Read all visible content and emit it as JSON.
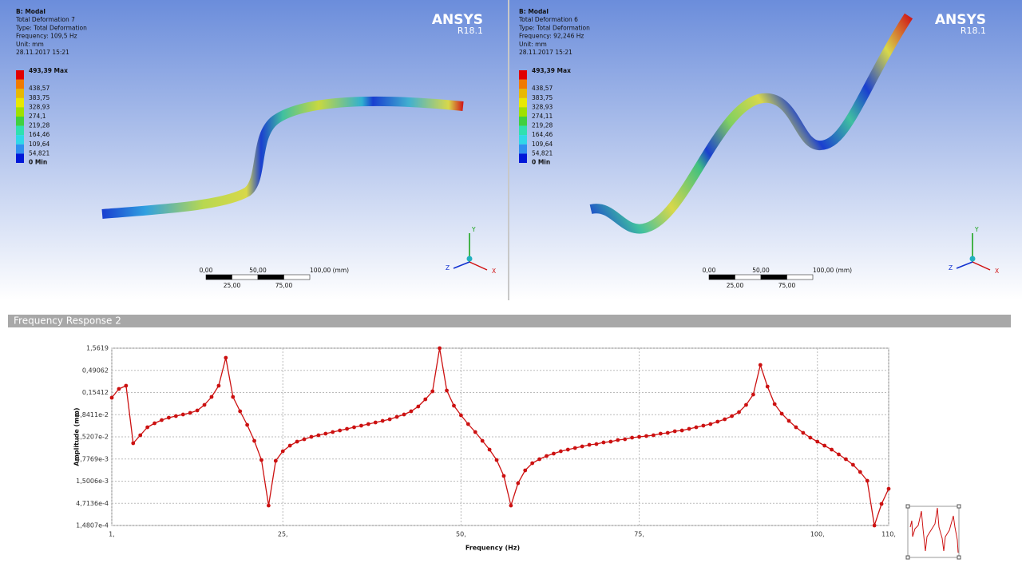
{
  "viewports": [
    {
      "info": [
        "B: Modal",
        "Total Deformation 7",
        "Type: Total Deformation",
        "Frequency: 109,5 Hz",
        "Unit: mm",
        "28.11.2017 15:21"
      ],
      "legend": [
        "493,39 Max",
        "438,57",
        "383,75",
        "328,93",
        "274,1",
        "219,28",
        "164,46",
        "109,64",
        "54,821",
        "0 Min"
      ],
      "logo": "ANSYS",
      "version": "R18.1",
      "scale_top": [
        "0,00",
        "50,00",
        "100,00 (mm)"
      ],
      "scale_bottom": [
        "25,00",
        "75,00"
      ],
      "axes": [
        "Y",
        "Z",
        "X"
      ]
    },
    {
      "info": [
        "B: Modal",
        "Total Deformation 6",
        "Type: Total Deformation",
        "Frequency: 92,246 Hz",
        "Unit: mm",
        "28.11.2017 15:21"
      ],
      "legend": [
        "493,39 Max",
        "438,57",
        "383,75",
        "328,93",
        "274,11",
        "219,28",
        "164,46",
        "109,64",
        "54,821",
        "0 Min"
      ],
      "logo": "ANSYS",
      "version": "R18.1",
      "scale_top": [
        "0,00",
        "50,00",
        "100,00 (mm)"
      ],
      "scale_bottom": [
        "25,00",
        "75,00"
      ],
      "axes": [
        "Y",
        "Z",
        "X"
      ]
    }
  ],
  "legend_colors": [
    "#e00000",
    "#f07a00",
    "#e8b800",
    "#e8e800",
    "#a0e000",
    "#40d040",
    "#30e0b0",
    "#30d8e8",
    "#3090f0",
    "#0018d8"
  ],
  "chart_data": {
    "type": "line",
    "title": "Frequency Response 2",
    "xlabel": "Frequency (Hz)",
    "ylabel": "Amplitude (mm)",
    "x": [
      1,
      2,
      3,
      4,
      5,
      6,
      7,
      8,
      9,
      10,
      11,
      12,
      13,
      14,
      15,
      16,
      17,
      18,
      19,
      20,
      21,
      22,
      23,
      24,
      25,
      26,
      27,
      28,
      29,
      30,
      31,
      32,
      33,
      34,
      35,
      36,
      37,
      38,
      39,
      40,
      41,
      42,
      43,
      44,
      45,
      46,
      47,
      48,
      49,
      50,
      51,
      52,
      53,
      54,
      55,
      56,
      57,
      58,
      59,
      60,
      61,
      62,
      63,
      64,
      65,
      66,
      67,
      68,
      69,
      70,
      71,
      72,
      73,
      74,
      75,
      76,
      77,
      78,
      79,
      80,
      81,
      82,
      83,
      84,
      85,
      86,
      87,
      88,
      89,
      90,
      91,
      92,
      93,
      94,
      95,
      96,
      97,
      98,
      99,
      100,
      101,
      102,
      103,
      104,
      105,
      106,
      107,
      108,
      109,
      110
    ],
    "series": [
      {
        "color": "#cc1111",
        "values": [
          0.1175,
          0.186,
          0.2197,
          0.01089,
          0.01653,
          0.02509,
          0.0309,
          0.0365,
          0.0414,
          0.045,
          0.0489,
          0.0532,
          0.0603,
          0.0807,
          0.1225,
          0.2197,
          0.947,
          0.1225,
          0.0578,
          0.0284,
          0.01234,
          0.00453,
          0.00042,
          0.00435,
          0.00717,
          0.00961,
          0.01184,
          0.01341,
          0.01521,
          0.01653,
          0.01797,
          0.01953,
          0.02123,
          0.02308,
          0.02509,
          0.02727,
          0.02965,
          0.03223,
          0.03503,
          0.03808,
          0.04315,
          0.0489,
          0.0578,
          0.0742,
          0.1081,
          0.1641,
          1.5619,
          0.1711,
          0.0774,
          0.0469,
          0.02965,
          0.01953,
          0.01234,
          0.0078,
          0.00453,
          0.00197,
          0.00042,
          0.00135,
          0.002636,
          0.003837,
          0.004727,
          0.005587,
          0.00633,
          0.00717,
          0.0078,
          0.00848,
          0.00922,
          0.01002,
          0.01044,
          0.01135,
          0.01184,
          0.01287,
          0.01341,
          0.01458,
          0.01521,
          0.01585,
          0.01653,
          0.01797,
          0.01874,
          0.02036,
          0.02123,
          0.02308,
          0.02509,
          0.02727,
          0.02965,
          0.0336,
          0.03808,
          0.045,
          0.0554,
          0.0807,
          0.1389,
          0.65,
          0.2108,
          0.0842,
          0.051,
          0.03503,
          0.02509,
          0.01874,
          0.01458,
          0.01184,
          0.00961,
          0.0078,
          0.00607,
          0.004727,
          0.00353,
          0.002424,
          0.001532,
          0.00014807,
          0.000457,
          0.001009
        ]
      }
    ],
    "xlim": [
      1,
      110
    ],
    "xticks": [
      {
        "value": 1,
        "label": "1,"
      },
      {
        "value": 25,
        "label": "25,"
      },
      {
        "value": 50,
        "label": "50,"
      },
      {
        "value": 75,
        "label": "75,"
      },
      {
        "value": 100,
        "label": "100,"
      },
      {
        "value": 110,
        "label": "110,"
      }
    ],
    "ylim": [
      0.00014807,
      1.5619
    ],
    "yticks": [
      {
        "value": 1.5619,
        "label": "1,5619"
      },
      {
        "value": 0.49062,
        "label": "0,49062"
      },
      {
        "value": 0.15412,
        "label": "0,15412"
      },
      {
        "value": 0.048411,
        "label": "4,8411e-2"
      },
      {
        "value": 0.015207,
        "label": "1,5207e-2"
      },
      {
        "value": 0.0047769,
        "label": "4,7769e-3"
      },
      {
        "value": 0.0015006,
        "label": "1,5006e-3"
      },
      {
        "value": 0.00047136,
        "label": "4,7136e-4"
      },
      {
        "value": 0.00014807,
        "label": "1,4807e-4"
      }
    ],
    "log_y": true,
    "grid": true
  }
}
